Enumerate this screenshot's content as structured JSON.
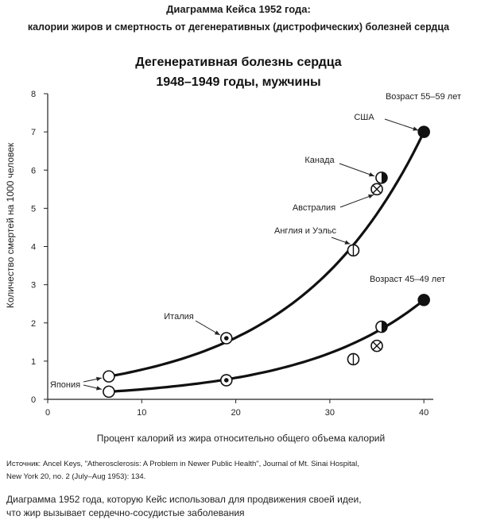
{
  "header": {
    "title": "Диаграмма Кейса 1952 года:",
    "subtitle": "калории жиров и смертность от дегенеративных (дистрофических) болезней сердца"
  },
  "chart_data": {
    "type": "scatter",
    "title_line1": "Дегенеративная болезнь сердца",
    "title_line2": "1948–1949 годы, мужчины",
    "xlabel": "Процент калорий из жира относительно общего объема калорий",
    "ylabel": "Количество смертей на 1000 человек",
    "xlim": [
      0,
      41
    ],
    "ylim": [
      0,
      8
    ],
    "xticks": [
      "0",
      "10",
      "20",
      "30",
      "40"
    ],
    "yticks": [
      "0",
      "1",
      "2",
      "3",
      "4",
      "5",
      "6",
      "7",
      "8"
    ],
    "grid": false,
    "countries": [
      "Япония",
      "Италия",
      "Англия и Уэльс",
      "Австралия",
      "Канада",
      "США"
    ],
    "series": [
      {
        "name": "Возраст 55–59 лет",
        "points": [
          {
            "country": "Япония",
            "x": 6.5,
            "y": 0.6,
            "marker": "open"
          },
          {
            "country": "Италия",
            "x": 19,
            "y": 1.6,
            "marker": "dot"
          },
          {
            "country": "Англия и Уэльс",
            "x": 32.5,
            "y": 3.9,
            "marker": "vline"
          },
          {
            "country": "Австралия",
            "x": 35,
            "y": 5.5,
            "marker": "cross"
          },
          {
            "country": "Канада",
            "x": 35.5,
            "y": 5.8,
            "marker": "half"
          },
          {
            "country": "США",
            "x": 40,
            "y": 7.0,
            "marker": "filled"
          }
        ]
      },
      {
        "name": "Возраст 45–49 лет",
        "points": [
          {
            "country": "Япония",
            "x": 6.5,
            "y": 0.2,
            "marker": "open"
          },
          {
            "country": "Италия",
            "x": 19,
            "y": 0.5,
            "marker": "dot"
          },
          {
            "country": "Англия и Уэльс",
            "x": 32.5,
            "y": 1.05,
            "marker": "vline"
          },
          {
            "country": "Австралия",
            "x": 35,
            "y": 1.4,
            "marker": "cross"
          },
          {
            "country": "Канада",
            "x": 35.5,
            "y": 1.9,
            "marker": "half"
          },
          {
            "country": "США",
            "x": 40,
            "y": 2.6,
            "marker": "filled"
          }
        ]
      }
    ]
  },
  "source": {
    "line1": "Источник: Ancel Keys, \"Atherosclerosis: A Problem in Newer Public Health\", Journal of Mt. Sinai Hospital,",
    "line2": "New York 20, no. 2 (July–Aug 1953): 134."
  },
  "caption": {
    "line1": "Диаграмма 1952 года, которую Кейс использовал для продвижения своей идеи,",
    "line2": "что жир вызывает сердечно-сосудистые заболевания"
  }
}
